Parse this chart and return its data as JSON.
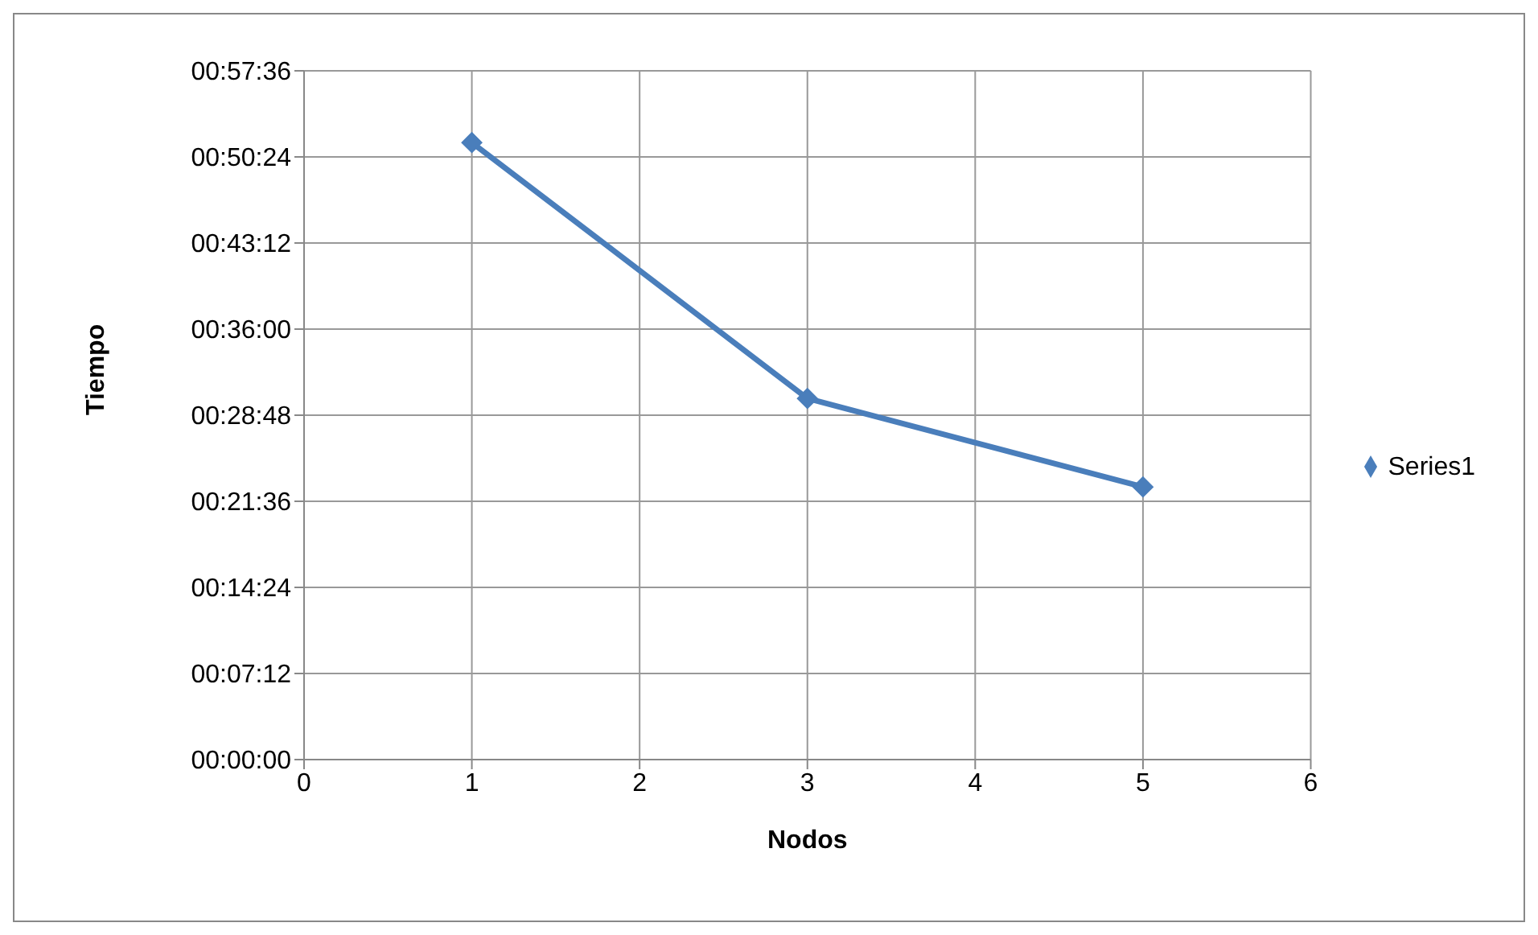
{
  "chart_data": {
    "type": "line",
    "xlabel": "Nodos",
    "ylabel": "Tiempo",
    "x": [
      1,
      3,
      5
    ],
    "series": [
      {
        "name": "Series1",
        "color": "#4a7ebb",
        "values": [
          51.6,
          30.2,
          22.8
        ]
      }
    ],
    "xlim": [
      0,
      6
    ],
    "xticks": [
      0,
      1,
      2,
      3,
      4,
      5,
      6
    ],
    "ylim": [
      0,
      57.6
    ],
    "yticks": [
      {
        "value": 0,
        "label": "00:00:00"
      },
      {
        "value": 7.2,
        "label": "00:07:12"
      },
      {
        "value": 14.4,
        "label": "00:14:24"
      },
      {
        "value": 21.6,
        "label": "00:21:36"
      },
      {
        "value": 28.8,
        "label": "00:28:48"
      },
      {
        "value": 36,
        "label": "00:36:00"
      },
      {
        "value": 43.2,
        "label": "00:43:12"
      },
      {
        "value": 50.4,
        "label": "00:50:24"
      },
      {
        "value": 57.6,
        "label": "00:57:36"
      }
    ],
    "grid": true,
    "legend": "right",
    "marker": "diamond",
    "line_style": "solid"
  }
}
